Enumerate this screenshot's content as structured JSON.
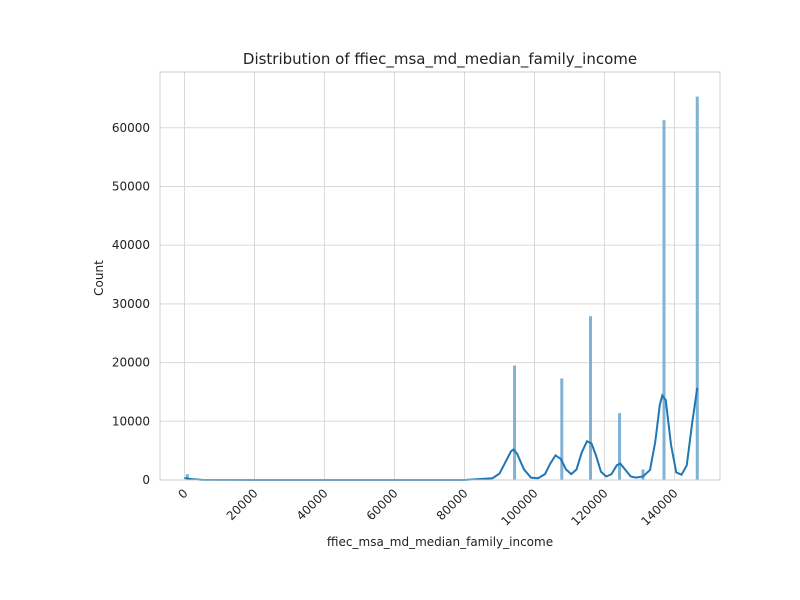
{
  "chart_data": {
    "type": "bar",
    "title": "Distribution of ffiec_msa_md_median_family_income",
    "xlabel": "ffiec_msa_md_median_family_income",
    "ylabel": "Count",
    "xlim": [
      -7000,
      153000
    ],
    "ylim": [
      0,
      69500
    ],
    "x_ticks": [
      0,
      20000,
      40000,
      60000,
      80000,
      100000,
      120000,
      140000
    ],
    "x_tick_labels": [
      "0",
      "20000",
      "40000",
      "60000",
      "80000",
      "100000",
      "120000",
      "140000"
    ],
    "y_ticks": [
      0,
      10000,
      20000,
      30000,
      40000,
      50000,
      60000
    ],
    "y_tick_labels": [
      "0",
      "10000",
      "20000",
      "30000",
      "40000",
      "50000",
      "60000"
    ],
    "x_tick_rotation": 45,
    "grid": true,
    "colors": {
      "bars": "#7fb2d5",
      "kde": "#1f77b4",
      "grid": "#d9d9d9",
      "frame": "#cccccc"
    },
    "bars": [
      {
        "x": 800,
        "value": 1000
      },
      {
        "x": 94300,
        "value": 19500
      },
      {
        "x": 107800,
        "value": 17300
      },
      {
        "x": 116000,
        "value": 27900
      },
      {
        "x": 124300,
        "value": 11400
      },
      {
        "x": 131000,
        "value": 1800
      },
      {
        "x": 137000,
        "value": 61300
      },
      {
        "x": 146500,
        "value": 65300
      }
    ],
    "kde": {
      "x": [
        0,
        2000,
        5000,
        20000,
        50000,
        80000,
        88000,
        90000,
        92000,
        93300,
        94000,
        95000,
        97000,
        99000,
        101000,
        103000,
        104500,
        106000,
        107500,
        109000,
        110500,
        112000,
        113500,
        115000,
        116300,
        117500,
        119000,
        120500,
        122000,
        123500,
        124500,
        126000,
        127500,
        129000,
        131000,
        133000,
        134500,
        135800,
        136500,
        137500,
        139000,
        140500,
        142000,
        143500,
        145000,
        146500
      ],
      "y": [
        350,
        150,
        20,
        0,
        0,
        10,
        300,
        1100,
        3400,
        4900,
        5200,
        4500,
        1800,
        400,
        300,
        1000,
        2800,
        4200,
        3600,
        1800,
        1000,
        1800,
        4700,
        6600,
        6200,
        4300,
        1400,
        600,
        1000,
        2500,
        2800,
        1700,
        600,
        400,
        600,
        1700,
        6500,
        12800,
        14400,
        13600,
        6000,
        1300,
        900,
        2500,
        9500,
        15700
      ]
    }
  }
}
